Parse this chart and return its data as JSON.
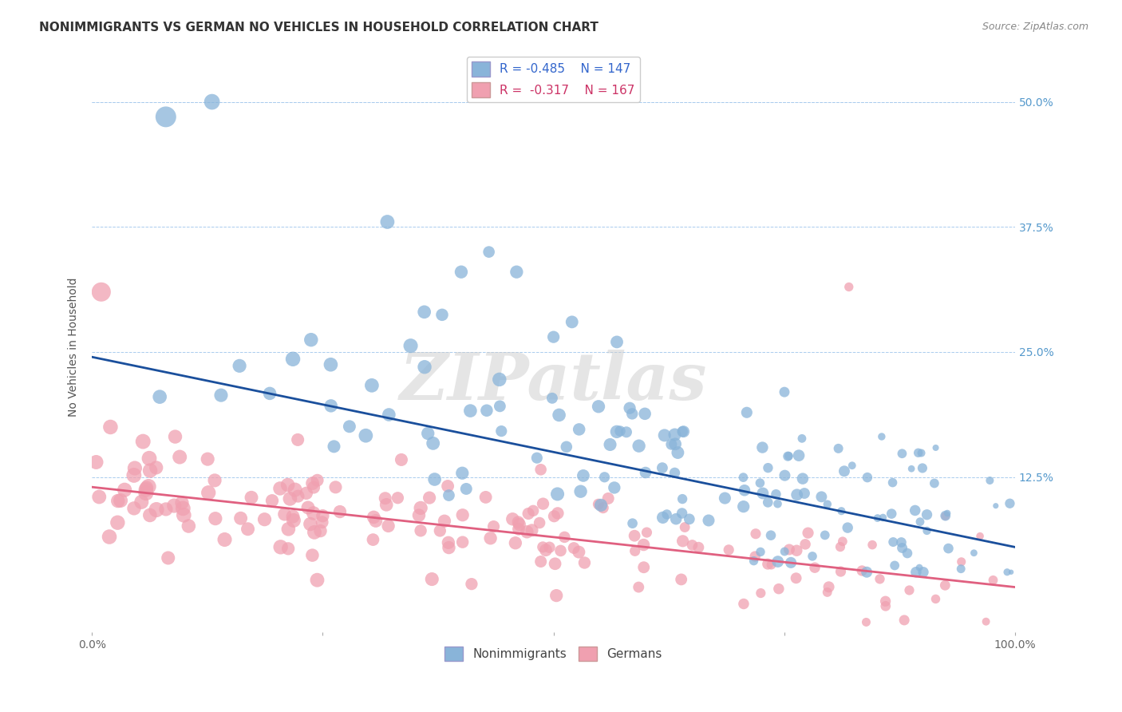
{
  "title": "NONIMMIGRANTS VS GERMAN NO VEHICLES IN HOUSEHOLD CORRELATION CHART",
  "source": "Source: ZipAtlas.com",
  "ylabel": "No Vehicles in Household",
  "yticks": [
    "50.0%",
    "37.5%",
    "25.0%",
    "12.5%"
  ],
  "ytick_vals": [
    0.5,
    0.375,
    0.25,
    0.125
  ],
  "xlim": [
    0.0,
    1.0
  ],
  "ylim": [
    -0.03,
    0.54
  ],
  "blue_R": -0.485,
  "blue_N": 147,
  "pink_R": -0.317,
  "pink_N": 167,
  "blue_color": "#89B4D9",
  "pink_color": "#F0A0B0",
  "blue_line_color": "#1a4f9c",
  "pink_line_color": "#e06080",
  "watermark": "ZIPatlas",
  "legend_label_blue": "Nonimmigrants",
  "legend_label_pink": "Germans",
  "title_fontsize": 11,
  "source_fontsize": 9,
  "blue_intercept": 0.245,
  "blue_slope": -0.19,
  "pink_intercept": 0.115,
  "pink_slope": -0.1
}
